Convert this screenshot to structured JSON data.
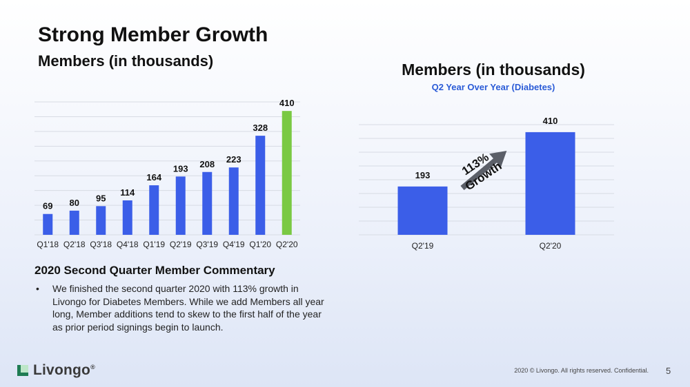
{
  "header": {
    "title": "Strong Member Growth",
    "subtitle": "Members (in thousands)"
  },
  "chart_data": [
    {
      "type": "bar",
      "categories": [
        "Q1'18",
        "Q2'18",
        "Q3'18",
        "Q4'18",
        "Q1'19",
        "Q2'19",
        "Q3'19",
        "Q4'19",
        "Q1'20",
        "Q2'20"
      ],
      "values": [
        69,
        80,
        95,
        114,
        164,
        193,
        208,
        223,
        328,
        410
      ],
      "data_labels": [
        "69",
        "80",
        "95",
        "114",
        "164",
        "193",
        "208",
        "223",
        "328",
        "410"
      ],
      "bar_color": "#3b5ee8",
      "highlight_color": "#7ac943",
      "highlight_index": 9,
      "ylim": [
        0,
        440
      ],
      "grid": true
    },
    {
      "type": "bar",
      "title": "Members (in thousands)",
      "subtitle": "Q2 Year Over Year (Diabetes)",
      "categories": [
        "Q2'19",
        "Q2'20"
      ],
      "values": [
        193,
        410
      ],
      "data_labels": [
        "193",
        "410"
      ],
      "bar_color": "#3b5ee8",
      "ylim": [
        0,
        440
      ],
      "grid": true,
      "annotation": {
        "line1": "113%",
        "line2": "Growth",
        "arrow_color": "#5b5f68"
      }
    }
  ],
  "commentary": {
    "heading": "2020 Second Quarter Member Commentary",
    "bullets": [
      "We finished the second quarter 2020 with 113% growth in Livongo for Diabetes Members. While we add Members all year long, Member additions tend to skew to the first half of the year as prior period signings begin to launch."
    ]
  },
  "footer": {
    "logo_text": "Livongo",
    "logo_mark": "®",
    "copyright": "2020 © Livongo. All rights reserved. Confidential.",
    "page_number": "5"
  }
}
